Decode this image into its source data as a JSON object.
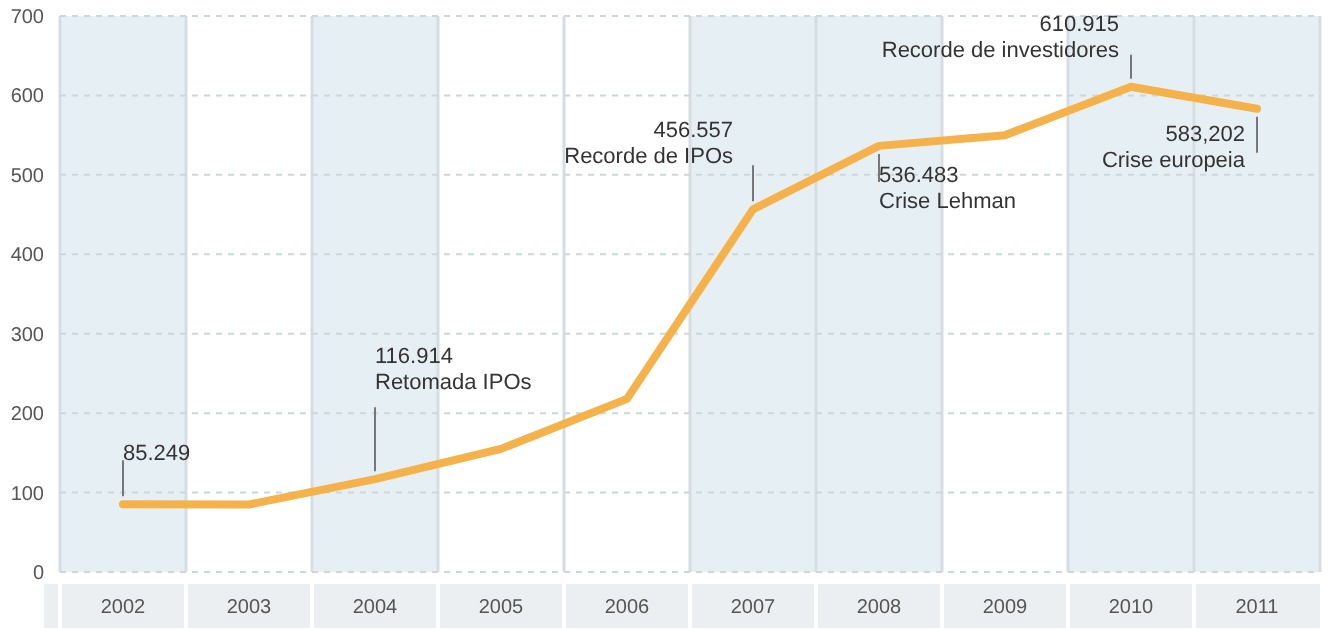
{
  "chart_data": {
    "type": "line",
    "categories": [
      "2002",
      "2003",
      "2004",
      "2005",
      "2006",
      "2007",
      "2008",
      "2009",
      "2010",
      "2011"
    ],
    "series": [
      {
        "color": "#f5b24a",
        "values": [
          85.249,
          85,
          116.914,
          155,
          218,
          456.557,
          536.483,
          550,
          610.915,
          583.202
        ]
      }
    ],
    "ylim": [
      0,
      700
    ],
    "yticks": [
      0,
      100,
      200,
      300,
      400,
      500,
      600,
      700
    ],
    "grid": "y",
    "marker": "none",
    "line_style": "solid",
    "bands": [
      {
        "axis": "x",
        "from": "2002",
        "to": "2002",
        "color": "#e6f0f4"
      },
      {
        "axis": "x",
        "from": "2004",
        "to": "2004",
        "color": "#e6f0f4"
      },
      {
        "axis": "x",
        "from": "2007",
        "to": "2008",
        "color": "#e6f0f4"
      },
      {
        "axis": "x",
        "from": "2010",
        "to": "2011",
        "color": "#e6f0f4"
      }
    ],
    "annotations": [
      {
        "text": "85.249",
        "x": "2002",
        "y": 85.249
      },
      {
        "text": "116.914\nRetomada IPOs",
        "x": "2004",
        "y": 116.914
      },
      {
        "text": "456.557\nRecorde de IPOs",
        "x": "2007",
        "y": 456.557
      },
      {
        "text": "536.483\nCrise Lehman",
        "x": "2008",
        "y": 536.483
      },
      {
        "text": "610.915\nRecorde de investidores",
        "x": "2010",
        "y": 610.915
      },
      {
        "text": "583,202\nCrise europeia",
        "x": "2011",
        "y": 583.202
      }
    ]
  }
}
